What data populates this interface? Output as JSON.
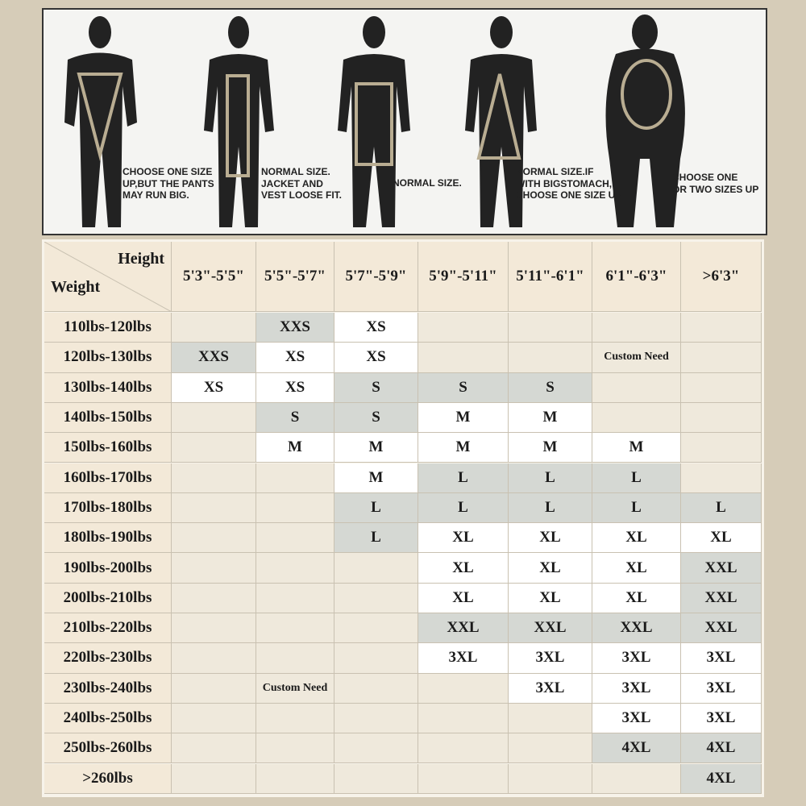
{
  "figures": [
    {
      "caption": [
        "CHOOSE ONE SIZE",
        "UP,BUT THE PANTS",
        "MAY RUN BIG."
      ]
    },
    {
      "caption": [
        "NORMAL SIZE.",
        "JACKET AND",
        "VEST LOOSE FIT."
      ]
    },
    {
      "caption": [
        "NORMAL SIZE."
      ]
    },
    {
      "caption": [
        "NORMAL SIZE.IF",
        "WITH BIGSTOMACH,",
        "CHOOSE ONE SIZE UP"
      ]
    },
    {
      "caption": [
        "CHOOSE ONE",
        "OR TWO SIZES UP"
      ]
    }
  ],
  "table": {
    "corner_top": "Height",
    "corner_bottom": "Weight",
    "columns": [
      "5'3\"-5'5\"",
      "5'5\"-5'7\"",
      "5'7\"-5'9\"",
      "5'9\"-5'11\"",
      "5'11\"-6'1\"",
      "6'1\"-6'3\"",
      ">6'3\""
    ],
    "rows": [
      {
        "weight": "110lbs-120lbs",
        "cells": [
          null,
          {
            "text": "XXS",
            "fill": "#d5d8d3"
          },
          {
            "text": "XS",
            "fill": "#ffffff"
          },
          null,
          null,
          null,
          null
        ]
      },
      {
        "weight": "120lbs-130lbs",
        "cells": [
          {
            "text": "XXS",
            "fill": "#d5d8d3"
          },
          {
            "text": "XS",
            "fill": "#ffffff"
          },
          {
            "text": "XS",
            "fill": "#ffffff"
          },
          null,
          null,
          {
            "text": "Custom Need",
            "fill": "#efe9dc"
          },
          null
        ]
      },
      {
        "weight": "130lbs-140lbs",
        "cells": [
          {
            "text": "XS",
            "fill": "#ffffff"
          },
          {
            "text": "XS",
            "fill": "#ffffff"
          },
          {
            "text": "S",
            "fill": "#d5d8d3"
          },
          {
            "text": "S",
            "fill": "#d5d8d3"
          },
          {
            "text": "S",
            "fill": "#d5d8d3"
          },
          null,
          null
        ]
      },
      {
        "weight": "140lbs-150lbs",
        "cells": [
          null,
          {
            "text": "S",
            "fill": "#d5d8d3"
          },
          {
            "text": "S",
            "fill": "#d5d8d3"
          },
          {
            "text": "M",
            "fill": "#ffffff"
          },
          {
            "text": "M",
            "fill": "#ffffff"
          },
          null,
          null
        ]
      },
      {
        "weight": "150lbs-160lbs",
        "cells": [
          null,
          {
            "text": "M",
            "fill": "#ffffff"
          },
          {
            "text": "M",
            "fill": "#ffffff"
          },
          {
            "text": "M",
            "fill": "#ffffff"
          },
          {
            "text": "M",
            "fill": "#ffffff"
          },
          {
            "text": "M",
            "fill": "#ffffff"
          },
          null
        ]
      },
      {
        "weight": "160lbs-170lbs",
        "cells": [
          null,
          null,
          {
            "text": "M",
            "fill": "#ffffff"
          },
          {
            "text": "L",
            "fill": "#d5d8d3"
          },
          {
            "text": "L",
            "fill": "#d5d8d3"
          },
          {
            "text": "L",
            "fill": "#d5d8d3"
          },
          null
        ]
      },
      {
        "weight": "170lbs-180lbs",
        "cells": [
          null,
          null,
          {
            "text": "L",
            "fill": "#d5d8d3"
          },
          {
            "text": "L",
            "fill": "#d5d8d3"
          },
          {
            "text": "L",
            "fill": "#d5d8d3"
          },
          {
            "text": "L",
            "fill": "#d5d8d3"
          },
          {
            "text": "L",
            "fill": "#d5d8d3"
          }
        ]
      },
      {
        "weight": "180lbs-190lbs",
        "cells": [
          null,
          null,
          {
            "text": "L",
            "fill": "#d5d8d3"
          },
          {
            "text": "XL",
            "fill": "#ffffff"
          },
          {
            "text": "XL",
            "fill": "#ffffff"
          },
          {
            "text": "XL",
            "fill": "#ffffff"
          },
          {
            "text": "XL",
            "fill": "#ffffff"
          }
        ]
      },
      {
        "weight": "190lbs-200lbs",
        "cells": [
          null,
          null,
          null,
          {
            "text": "XL",
            "fill": "#ffffff"
          },
          {
            "text": "XL",
            "fill": "#ffffff"
          },
          {
            "text": "XL",
            "fill": "#ffffff"
          },
          {
            "text": "XXL",
            "fill": "#d5d8d3"
          }
        ]
      },
      {
        "weight": "200lbs-210lbs",
        "cells": [
          null,
          null,
          null,
          {
            "text": "XL",
            "fill": "#ffffff"
          },
          {
            "text": "XL",
            "fill": "#ffffff"
          },
          {
            "text": "XL",
            "fill": "#ffffff"
          },
          {
            "text": "XXL",
            "fill": "#d5d8d3"
          }
        ]
      },
      {
        "weight": "210lbs-220lbs",
        "cells": [
          null,
          null,
          null,
          {
            "text": "XXL",
            "fill": "#d5d8d3"
          },
          {
            "text": "XXL",
            "fill": "#d5d8d3"
          },
          {
            "text": "XXL",
            "fill": "#d5d8d3"
          },
          {
            "text": "XXL",
            "fill": "#d5d8d3"
          }
        ]
      },
      {
        "weight": "220lbs-230lbs",
        "cells": [
          null,
          null,
          null,
          {
            "text": "3XL",
            "fill": "#ffffff"
          },
          {
            "text": "3XL",
            "fill": "#ffffff"
          },
          {
            "text": "3XL",
            "fill": "#ffffff"
          },
          {
            "text": "3XL",
            "fill": "#ffffff"
          }
        ]
      },
      {
        "weight": "230lbs-240lbs",
        "cells": [
          null,
          {
            "text": "Custom Need",
            "fill": "#efe9dc"
          },
          null,
          null,
          {
            "text": "3XL",
            "fill": "#ffffff"
          },
          {
            "text": "3XL",
            "fill": "#ffffff"
          },
          {
            "text": "3XL",
            "fill": "#ffffff"
          }
        ]
      },
      {
        "weight": "240lbs-250lbs",
        "cells": [
          null,
          null,
          null,
          null,
          null,
          {
            "text": "3XL",
            "fill": "#ffffff"
          },
          {
            "text": "3XL",
            "fill": "#ffffff"
          }
        ]
      },
      {
        "weight": "250lbs-260lbs",
        "cells": [
          null,
          null,
          null,
          null,
          null,
          {
            "text": "4XL",
            "fill": "#d5d8d3"
          },
          {
            "text": "4XL",
            "fill": "#d5d8d3"
          }
        ]
      },
      {
        "weight": ">260lbs",
        "cells": [
          null,
          null,
          null,
          null,
          null,
          null,
          {
            "text": "4XL",
            "fill": "#d5d8d3"
          }
        ]
      }
    ]
  }
}
